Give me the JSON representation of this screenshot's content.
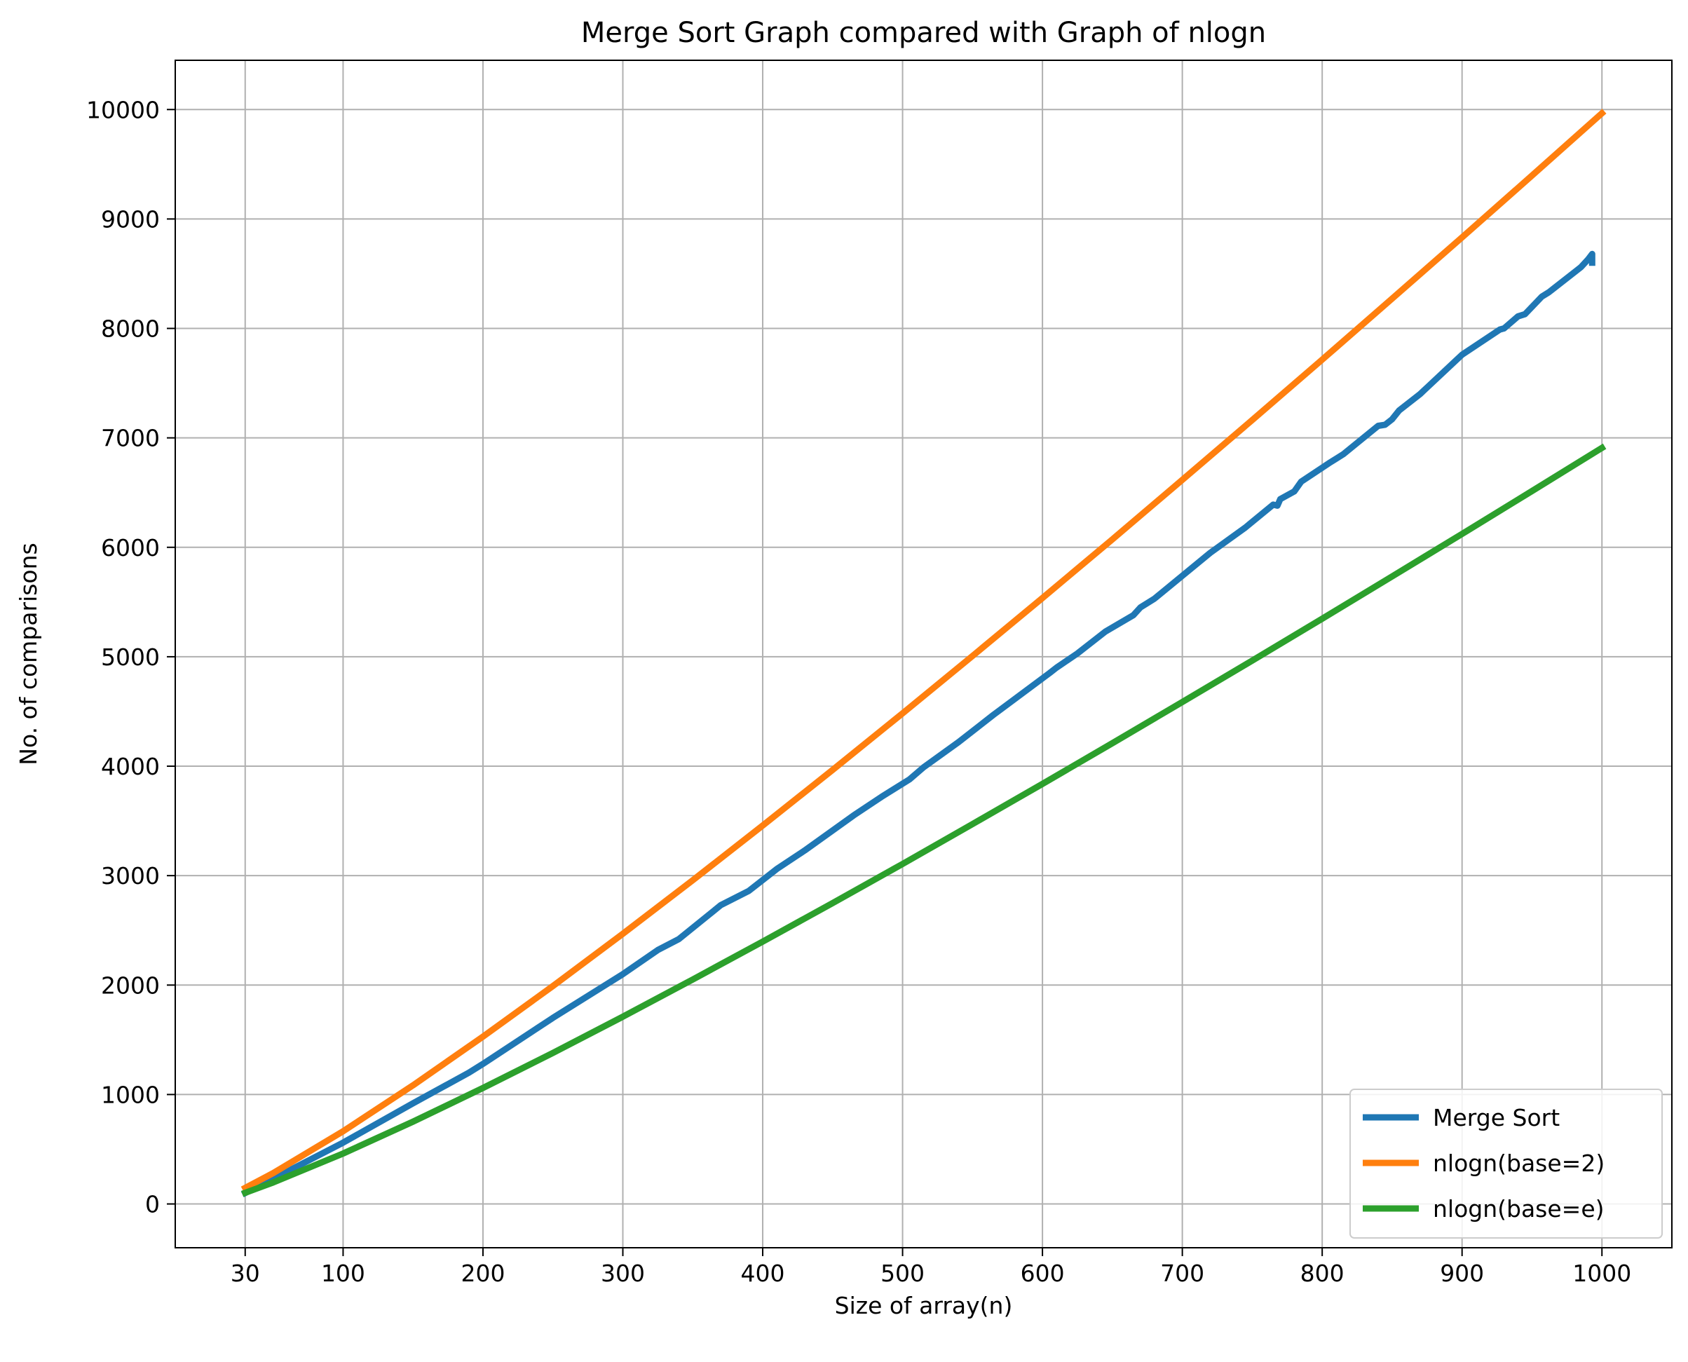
{
  "chart_data": {
    "type": "line",
    "title": "Merge Sort Graph compared with Graph of nlogn",
    "xlabel": "Size of array(n)",
    "ylabel": "No. of comparisons",
    "xlim": [
      -20,
      1050
    ],
    "ylim": [
      -400,
      10450
    ],
    "xticks": [
      30,
      100,
      200,
      300,
      400,
      500,
      600,
      700,
      800,
      900,
      1000
    ],
    "yticks": [
      0,
      1000,
      2000,
      3000,
      4000,
      5000,
      6000,
      7000,
      8000,
      9000,
      10000
    ],
    "grid": true,
    "legend_position": "lower-right",
    "series": [
      {
        "name": "Merge Sort",
        "color": "#1f77b4",
        "x": [
          30,
          50,
          100,
          150,
          190,
          200,
          250,
          300,
          325,
          340,
          370,
          390,
          410,
          430,
          465,
          485,
          505,
          515,
          540,
          565,
          605,
          610,
          625,
          645,
          665,
          670,
          680,
          720,
          745,
          765,
          768,
          770,
          780,
          785,
          805,
          815,
          840,
          845,
          850,
          855,
          870,
          900,
          927,
          930,
          940,
          945,
          957,
          962,
          965,
          985,
          990,
          993,
          993
        ],
        "y": [
          100,
          230,
          560,
          920,
          1200,
          1280,
          1700,
          2100,
          2320,
          2420,
          2730,
          2860,
          3060,
          3230,
          3550,
          3720,
          3880,
          3990,
          4220,
          4470,
          4850,
          4900,
          5030,
          5230,
          5380,
          5450,
          5530,
          5950,
          6180,
          6390,
          6380,
          6440,
          6510,
          6600,
          6770,
          6850,
          7110,
          7120,
          7170,
          7250,
          7400,
          7760,
          7990,
          8000,
          8110,
          8130,
          8290,
          8330,
          8360,
          8560,
          8630,
          8680,
          8600
        ]
      },
      {
        "name": "nlogn(base=2)",
        "color": "#ff7f0e",
        "function": "n*log2(n)",
        "x": [
          30,
          50,
          100,
          150,
          200,
          250,
          300,
          350,
          400,
          450,
          500,
          550,
          600,
          650,
          700,
          750,
          800,
          850,
          900,
          950,
          1000
        ],
        "y": [
          147,
          282,
          664,
          1084,
          1529,
          1991,
          2469,
          2958,
          3458,
          3966,
          4483,
          5007,
          5537,
          6073,
          6616,
          7163,
          7715,
          8272,
          8832,
          9397,
          9966
        ]
      },
      {
        "name": "nlogn(base=e)",
        "color": "#2ca02c",
        "function": "n*ln(n)",
        "x": [
          30,
          50,
          100,
          150,
          200,
          250,
          300,
          350,
          400,
          450,
          500,
          550,
          600,
          650,
          700,
          750,
          800,
          850,
          900,
          950,
          1000
        ],
        "y": [
          102,
          196,
          461,
          752,
          1060,
          1380,
          1711,
          2051,
          2397,
          2749,
          3107,
          3471,
          3838,
          4210,
          4586,
          4965,
          5348,
          5734,
          6122,
          6514,
          6908
        ]
      }
    ]
  }
}
